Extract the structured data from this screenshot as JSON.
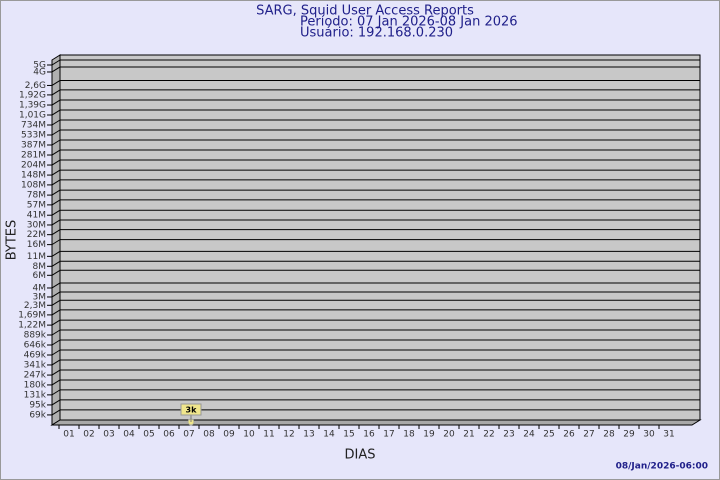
{
  "chart_data": {
    "type": "bar",
    "title": "SARG, Squid User Access Reports",
    "subtitle": [
      "Período: 07 Jan 2026-08 Jan 2026",
      "Usuário: 192.168.0.230"
    ],
    "y_label": "BYTES",
    "x_label": "DIAS",
    "footer": "08/Jan/2026-06:00",
    "categories": [
      "01",
      "02",
      "03",
      "04",
      "05",
      "06",
      "07",
      "08",
      "09",
      "10",
      "11",
      "12",
      "13",
      "14",
      "15",
      "16",
      "17",
      "18",
      "19",
      "20",
      "21",
      "22",
      "23",
      "24",
      "25",
      "26",
      "27",
      "28",
      "29",
      "30",
      "31"
    ],
    "values": [
      null,
      null,
      null,
      null,
      null,
      null,
      3000,
      null,
      null,
      null,
      null,
      null,
      null,
      null,
      null,
      null,
      null,
      null,
      null,
      null,
      null,
      null,
      null,
      null,
      null,
      null,
      null,
      null,
      null,
      null,
      null
    ],
    "value_labels": [
      null,
      null,
      null,
      null,
      null,
      null,
      "3k",
      null,
      null,
      null,
      null,
      null,
      null,
      null,
      null,
      null,
      null,
      null,
      null,
      null,
      null,
      null,
      null,
      null,
      null,
      null,
      null,
      null,
      null,
      null,
      null
    ],
    "color": "#f0e68c",
    "log_scale": true,
    "grid": true,
    "ylim": [
      50000,
      5000000000
    ],
    "yticks": [
      {
        "value": 69000,
        "label": "69k"
      },
      {
        "value": 95000,
        "label": "95k"
      },
      {
        "value": 131000,
        "label": "131k"
      },
      {
        "value": 180000,
        "label": "180k"
      },
      {
        "value": 247000,
        "label": "247k"
      },
      {
        "value": 341000,
        "label": "341k"
      },
      {
        "value": 469000,
        "label": "469k"
      },
      {
        "value": 646000,
        "label": "646k"
      },
      {
        "value": 889000,
        "label": "889k"
      },
      {
        "value": 1220000,
        "label": "1,22M"
      },
      {
        "value": 1690000,
        "label": "1,69M"
      },
      {
        "value": 2300000,
        "label": "2,3M"
      },
      {
        "value": 3000000,
        "label": "3M"
      },
      {
        "value": 4000000,
        "label": "4M"
      },
      {
        "value": 6000000,
        "label": "6M"
      },
      {
        "value": 8000000,
        "label": "8M"
      },
      {
        "value": 11000000,
        "label": "11M"
      },
      {
        "value": 16000000,
        "label": "16M"
      },
      {
        "value": 22000000,
        "label": "22M"
      },
      {
        "value": 30000000,
        "label": "30M"
      },
      {
        "value": 41000000,
        "label": "41M"
      },
      {
        "value": 57000000,
        "label": "57M"
      },
      {
        "value": 78000000,
        "label": "78M"
      },
      {
        "value": 108000000,
        "label": "108M"
      },
      {
        "value": 148000000,
        "label": "148M"
      },
      {
        "value": 204000000,
        "label": "204M"
      },
      {
        "value": 281000000,
        "label": "281M"
      },
      {
        "value": 387000000,
        "label": "387M"
      },
      {
        "value": 533000000,
        "label": "533M"
      },
      {
        "value": 734000000,
        "label": "734M"
      },
      {
        "value": 1010000000,
        "label": "1,01G"
      },
      {
        "value": 1390000000,
        "label": "1,39G"
      },
      {
        "value": 1920000000,
        "label": "1,92G"
      },
      {
        "value": 2600000000,
        "label": "2,6G"
      },
      {
        "value": 4000000000,
        "label": "4G"
      },
      {
        "value": 5000000000,
        "label": "5G"
      }
    ]
  }
}
